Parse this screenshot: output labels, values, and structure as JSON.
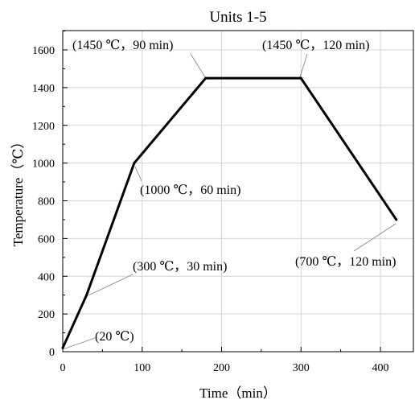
{
  "chart_data": {
    "type": "line",
    "title": "Units 1-5",
    "xlabel": "Time（min）",
    "ylabel": "Temperature（℃）",
    "xlim": [
      0,
      430
    ],
    "ylim": [
      0,
      1700
    ],
    "x_ticks": [
      0,
      100,
      200,
      300,
      400
    ],
    "y_ticks": [
      0,
      200,
      400,
      600,
      800,
      1000,
      1200,
      1400,
      1600
    ],
    "grid": true,
    "series": [
      {
        "x": [
          0,
          30,
          90,
          180,
          300,
          420
        ],
        "y": [
          20,
          300,
          1000,
          1450,
          1450,
          700
        ],
        "color": "#000000"
      }
    ],
    "annotations": [
      {
        "text": "(20 ℃)",
        "x": 0,
        "y": 20
      },
      {
        "text": "(300 ℃，30 min)",
        "x": 30,
        "y": 300
      },
      {
        "text": "(1000 ℃，60 min)",
        "x": 90,
        "y": 1000
      },
      {
        "text": "(1450 ℃，90 min)",
        "x": 180,
        "y": 1450
      },
      {
        "text": "(1450 ℃，120 min)",
        "x": 300,
        "y": 1450
      },
      {
        "text": "(700 ℃，120 min)",
        "x": 420,
        "y": 700
      }
    ]
  }
}
